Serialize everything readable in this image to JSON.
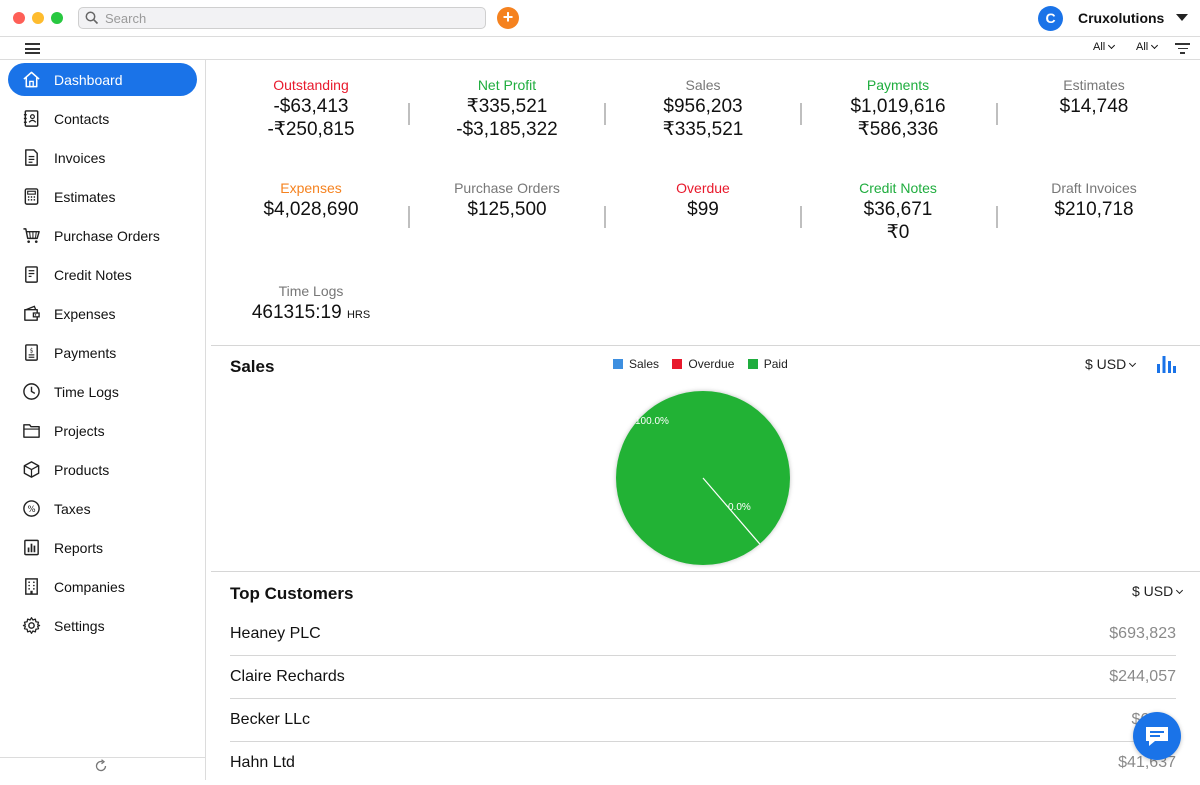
{
  "header": {
    "search_placeholder": "Search",
    "avatar_letter": "C",
    "org_name": "Cruxolutions"
  },
  "toolbar": {
    "filter1": "All",
    "filter2": "All"
  },
  "sidebar": {
    "items": [
      {
        "label": "Dashboard",
        "icon": "home-icon",
        "active": true
      },
      {
        "label": "Contacts",
        "icon": "contacts-book-icon"
      },
      {
        "label": "Invoices",
        "icon": "invoice-document-icon"
      },
      {
        "label": "Estimates",
        "icon": "calculator-icon"
      },
      {
        "label": "Purchase Orders",
        "icon": "shopping-cart-icon"
      },
      {
        "label": "Credit Notes",
        "icon": "credit-note-icon"
      },
      {
        "label": "Expenses",
        "icon": "wallet-icon"
      },
      {
        "label": "Payments",
        "icon": "receipt-icon"
      },
      {
        "label": "Time Logs",
        "icon": "clock-icon"
      },
      {
        "label": "Projects",
        "icon": "folder-icon"
      },
      {
        "label": "Products",
        "icon": "box-icon"
      },
      {
        "label": "Taxes",
        "icon": "percent-icon"
      },
      {
        "label": "Reports",
        "icon": "bar-chart-icon"
      },
      {
        "label": "Companies",
        "icon": "building-icon"
      },
      {
        "label": "Settings",
        "icon": "gear-icon"
      }
    ]
  },
  "stats": [
    {
      "label": "Outstanding",
      "values": [
        "-$63,413",
        "-₹250,815"
      ],
      "color": "#e8192c"
    },
    {
      "label": "Net Profit",
      "values": [
        "₹335,521",
        "-$3,185,322"
      ],
      "color": "#1fad3e"
    },
    {
      "label": "Sales",
      "values": [
        "$956,203",
        "₹335,521"
      ],
      "color": "#777777"
    },
    {
      "label": "Payments",
      "values": [
        "$1,019,616",
        "₹586,336"
      ],
      "color": "#1fad3e"
    },
    {
      "label": "Estimates",
      "values": [
        "$14,748"
      ],
      "color": "#777777"
    },
    {
      "label": "Expenses",
      "values": [
        "$4,028,690"
      ],
      "color": "#f5821f"
    },
    {
      "label": "Purchase Orders",
      "values": [
        "$125,500"
      ],
      "color": "#777777"
    },
    {
      "label": "Overdue",
      "values": [
        "$99"
      ],
      "color": "#e8192c"
    },
    {
      "label": "Credit Notes",
      "values": [
        "$36,671",
        "₹0"
      ],
      "color": "#1fad3e"
    },
    {
      "label": "Draft Invoices",
      "values": [
        "$210,718"
      ],
      "color": "#777777"
    },
    {
      "label": "Time Logs",
      "values": [
        "461315:19"
      ],
      "unit": "HRS",
      "color": "#777777"
    }
  ],
  "sales": {
    "title": "Sales",
    "currency": "$ USD",
    "legend": [
      {
        "name": "Sales",
        "color": "#3d8fe0"
      },
      {
        "name": "Overdue",
        "color": "#e8192c"
      },
      {
        "name": "Paid",
        "color": "#1fad3e"
      }
    ]
  },
  "chart_data": {
    "type": "pie",
    "slices": [
      {
        "name": "Paid",
        "value": 100.0,
        "label": "100.0%",
        "color": "#22b236"
      },
      {
        "name": "Overdue",
        "value": 0.0,
        "label": "0.0%",
        "color": "#e8192c"
      }
    ]
  },
  "top_customers": {
    "title": "Top Customers",
    "currency": "$ USD",
    "rows": [
      {
        "name": "Heaney PLC",
        "amount": "$693,823"
      },
      {
        "name": "Claire Rechards",
        "amount": "$244,057"
      },
      {
        "name": "Becker LLc",
        "amount": "$65,..."
      },
      {
        "name": "Hahn Ltd",
        "amount": "$41,637"
      }
    ]
  }
}
